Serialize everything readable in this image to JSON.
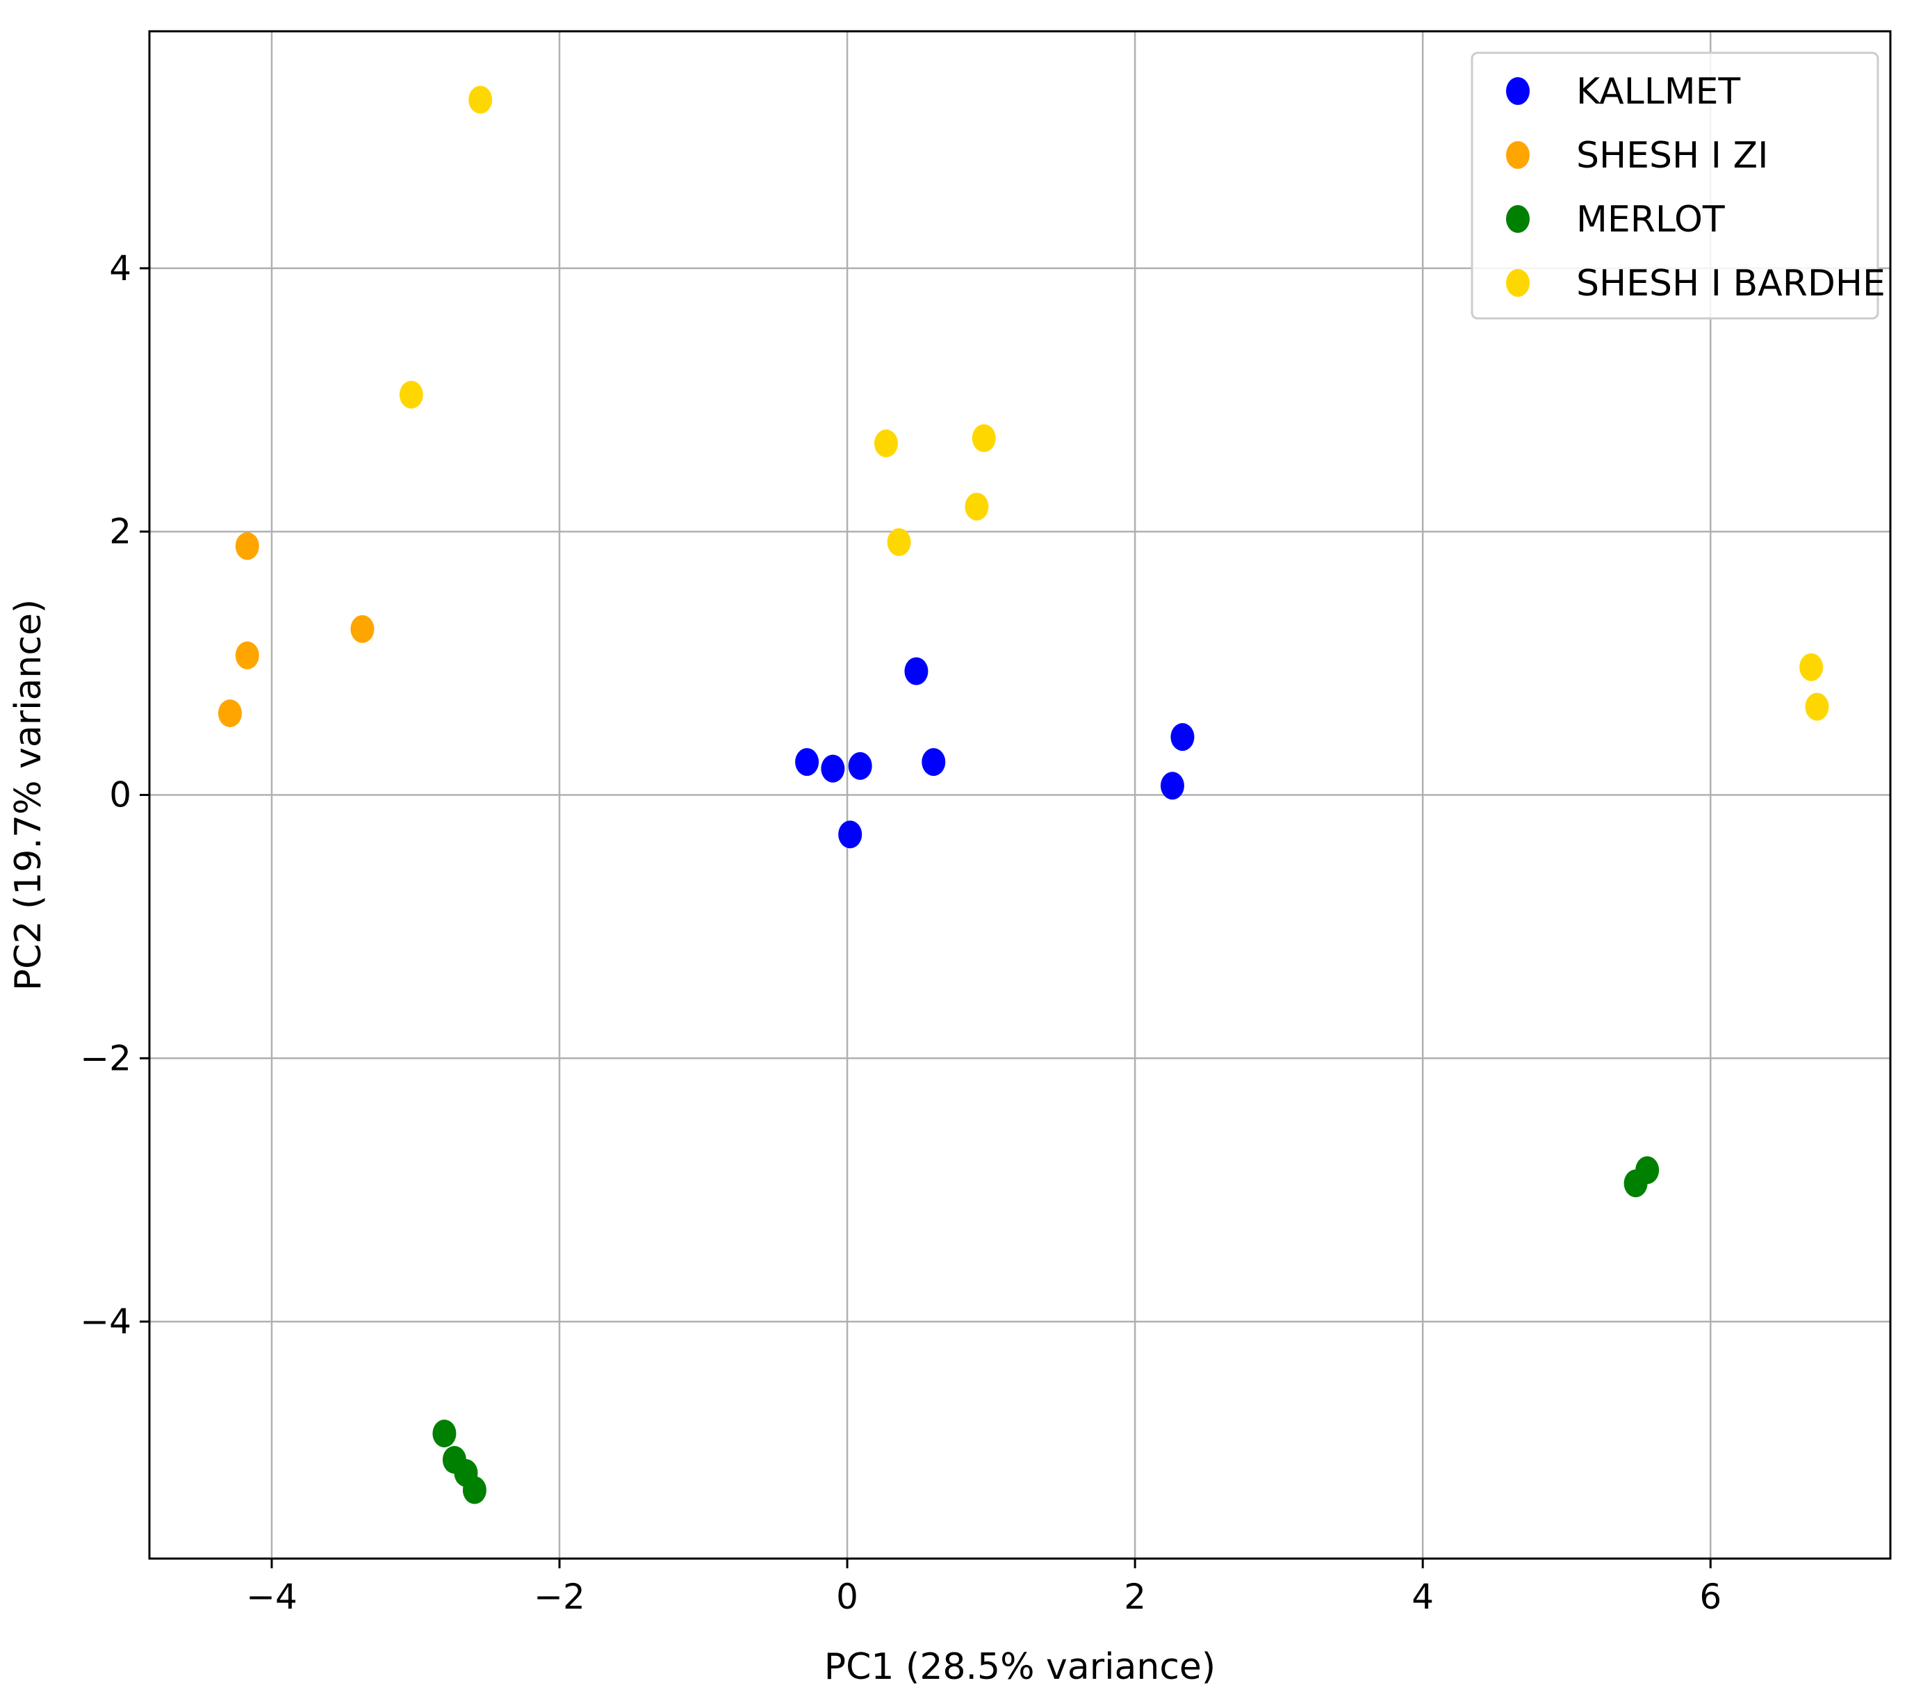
{
  "chart_data": {
    "type": "scatter",
    "title": "",
    "xlabel": "PC1 (28.5% variance)",
    "ylabel": "PC2 (19.7% variance)",
    "xlim": [
      -4.85,
      7.25
    ],
    "ylim": [
      -5.8,
      5.8
    ],
    "xticks": [
      -4,
      -2,
      0,
      2,
      4,
      6
    ],
    "yticks": [
      -4,
      -2,
      0,
      2,
      4
    ],
    "xtick_labels": [
      "−4",
      "−2",
      "0",
      "2",
      "4",
      "6"
    ],
    "ytick_labels": [
      "−4",
      "−2",
      "0",
      "2",
      "4"
    ],
    "grid": true,
    "legend_position": "top-right",
    "series": [
      {
        "name": "KALLMET",
        "color": "#0000ff",
        "points": [
          {
            "x": -0.28,
            "y": 0.25
          },
          {
            "x": -0.1,
            "y": 0.2
          },
          {
            "x": 0.09,
            "y": 0.22
          },
          {
            "x": 0.02,
            "y": -0.3
          },
          {
            "x": 0.48,
            "y": 0.94
          },
          {
            "x": 0.6,
            "y": 0.25
          },
          {
            "x": 2.26,
            "y": 0.07
          },
          {
            "x": 2.33,
            "y": 0.44
          }
        ]
      },
      {
        "name": "SHESH I ZI",
        "color": "#ffa500",
        "points": [
          {
            "x": -4.17,
            "y": 1.89
          },
          {
            "x": -4.17,
            "y": 1.06
          },
          {
            "x": -4.29,
            "y": 0.62
          },
          {
            "x": -3.37,
            "y": 1.26
          }
        ]
      },
      {
        "name": "MERLOT",
        "color": "#008000",
        "points": [
          {
            "x": -2.8,
            "y": -4.85
          },
          {
            "x": -2.73,
            "y": -5.05
          },
          {
            "x": -2.65,
            "y": -5.15
          },
          {
            "x": -2.59,
            "y": -5.28
          },
          {
            "x": 5.48,
            "y": -2.95
          },
          {
            "x": 5.56,
            "y": -2.85
          }
        ]
      },
      {
        "name": "SHESH I BARDHE",
        "color": "#ffd700",
        "points": [
          {
            "x": -2.55,
            "y": 5.28
          },
          {
            "x": -3.03,
            "y": 3.04
          },
          {
            "x": 0.27,
            "y": 2.67
          },
          {
            "x": 0.95,
            "y": 2.71
          },
          {
            "x": 0.9,
            "y": 2.19
          },
          {
            "x": 0.36,
            "y": 1.92
          },
          {
            "x": 6.7,
            "y": 0.97
          },
          {
            "x": 6.74,
            "y": 0.67
          }
        ]
      }
    ]
  }
}
